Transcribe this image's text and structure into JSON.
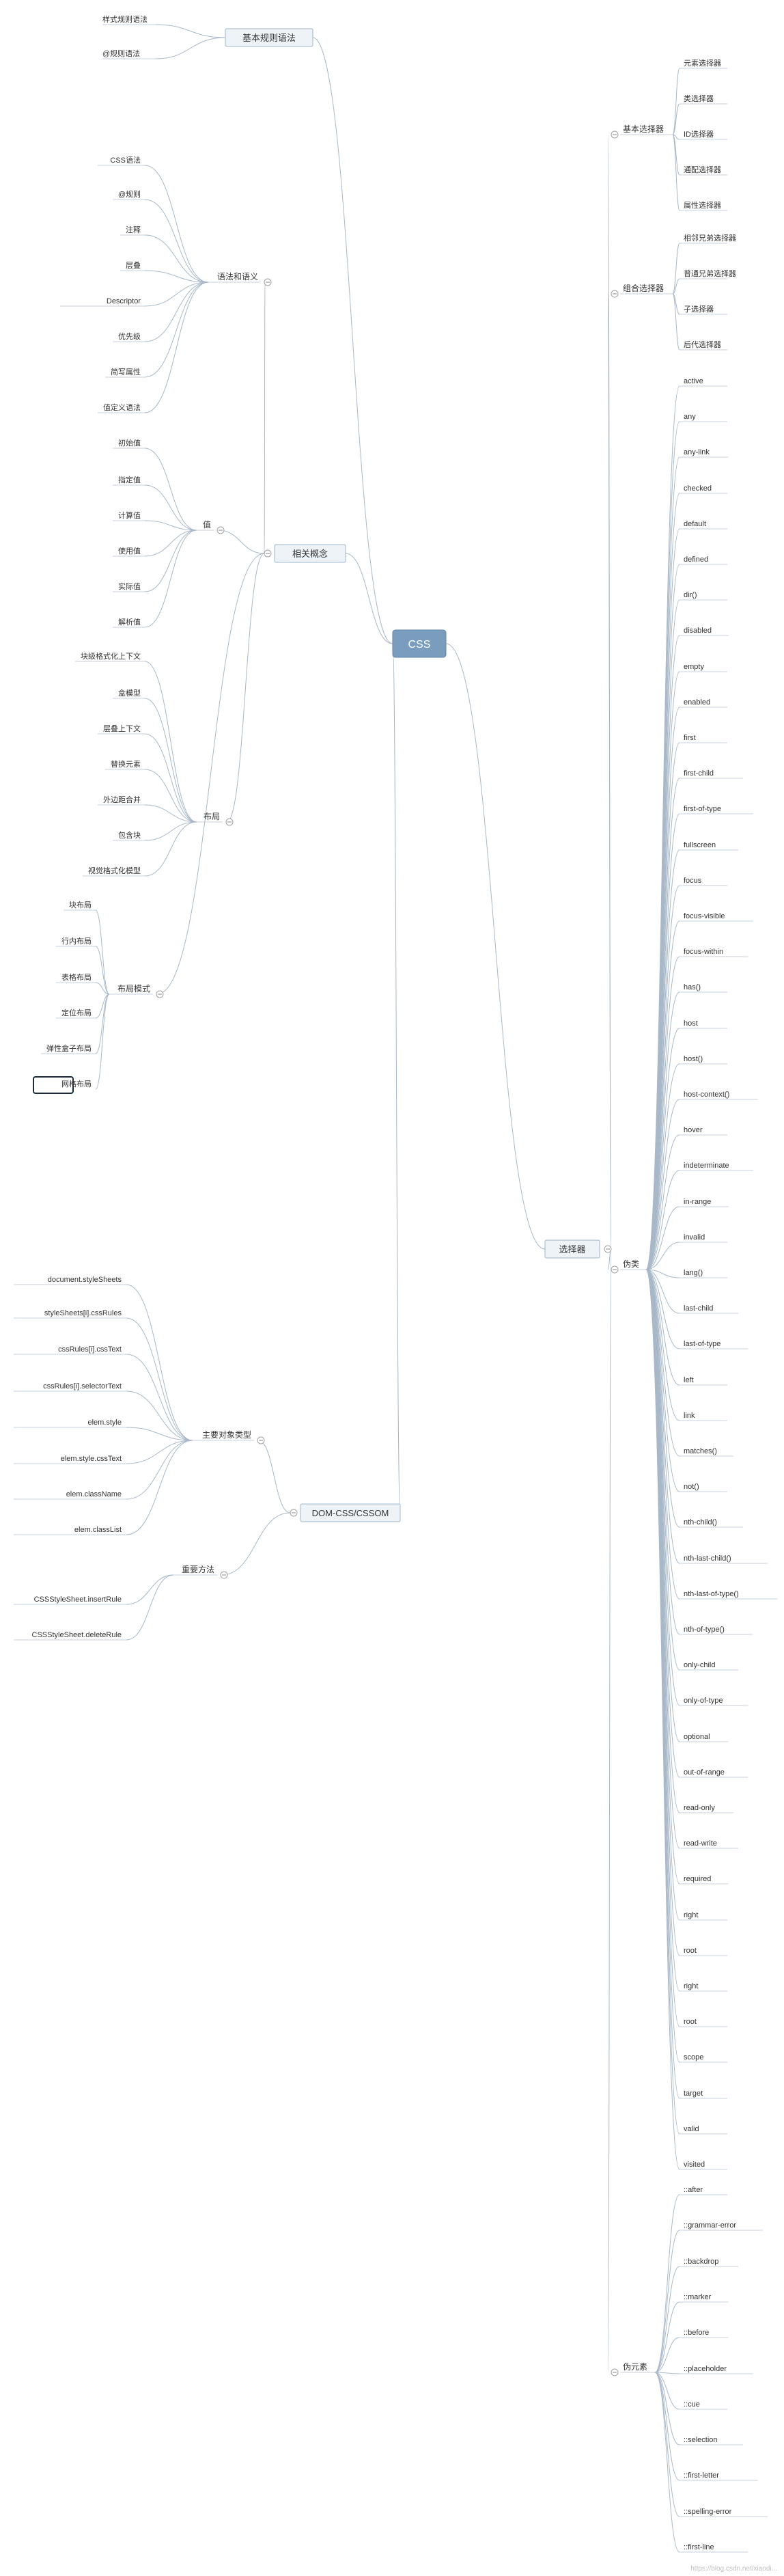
{
  "root": "CSS",
  "watermark": "https://blog.csdn.net/xiaodi...",
  "colors": {
    "root_fill": "#7a9dbd",
    "connector": "#a8b8c8",
    "box_fill": "#eef3f8",
    "box_stroke": "#9fb4c9",
    "highlight_stroke": "#1a2a3a"
  },
  "left": [
    {
      "label": "基本规则语法",
      "children": [
        {
          "label": "样式规则语法"
        },
        {
          "label": "@规则语法"
        }
      ]
    },
    {
      "label": "相关概念",
      "children": [
        {
          "label": "语法和语义",
          "children": [
            {
              "label": "CSS语法"
            },
            {
              "label": "@规则"
            },
            {
              "label": "注释"
            },
            {
              "label": "层叠"
            },
            {
              "label": "Descriptor"
            },
            {
              "label": "优先级"
            },
            {
              "label": "简写属性"
            },
            {
              "label": "值定义语法"
            }
          ]
        },
        {
          "label": "值",
          "children": [
            {
              "label": "初始值"
            },
            {
              "label": "指定值"
            },
            {
              "label": "计算值"
            },
            {
              "label": "使用值"
            },
            {
              "label": "实际值"
            },
            {
              "label": "解析值"
            }
          ]
        },
        {
          "label": "布局",
          "children": [
            {
              "label": "块级格式化上下文"
            },
            {
              "label": "盒模型"
            },
            {
              "label": "层叠上下文"
            },
            {
              "label": "替换元素"
            },
            {
              "label": "外边距合并"
            },
            {
              "label": "包含块"
            },
            {
              "label": "视觉格式化模型"
            }
          ]
        },
        {
          "label": "布局模式",
          "children": [
            {
              "label": "块布局"
            },
            {
              "label": "行内布局"
            },
            {
              "label": "表格布局"
            },
            {
              "label": "定位布局"
            },
            {
              "label": "弹性盒子布局"
            },
            {
              "label": "网格布局",
              "highlight": true
            }
          ]
        }
      ]
    },
    {
      "label": "DOM-CSS/CSSOM",
      "children": [
        {
          "label": "主要对象类型",
          "children": [
            {
              "label": "document.styleSheets"
            },
            {
              "label": "styleSheets[i].cssRules"
            },
            {
              "label": "cssRules[i].cssText"
            },
            {
              "label": "cssRules[i].selectorText"
            },
            {
              "label": "elem.style"
            },
            {
              "label": "elem.style.cssText"
            },
            {
              "label": "elem.className"
            },
            {
              "label": "elem.classList"
            }
          ]
        },
        {
          "label": "重要方法",
          "children": [
            {
              "label": "CSSStyleSheet.insertRule"
            },
            {
              "label": "CSSStyleSheet.deleteRule"
            }
          ]
        }
      ]
    }
  ],
  "right": [
    {
      "label": "选择器",
      "children": [
        {
          "label": "基本选择器",
          "children": [
            {
              "label": "元素选择器"
            },
            {
              "label": "类选择器"
            },
            {
              "label": "ID选择器"
            },
            {
              "label": "通配选择器"
            },
            {
              "label": "属性选择器"
            }
          ]
        },
        {
          "label": "组合选择器",
          "children": [
            {
              "label": "相邻兄弟选择器"
            },
            {
              "label": "普通兄弟选择器"
            },
            {
              "label": "子选择器"
            },
            {
              "label": "后代选择器"
            }
          ]
        },
        {
          "label": "伪类",
          "children": [
            {
              "label": "active"
            },
            {
              "label": "any"
            },
            {
              "label": "any-link"
            },
            {
              "label": "checked"
            },
            {
              "label": "default"
            },
            {
              "label": "defined"
            },
            {
              "label": "dir()"
            },
            {
              "label": "disabled"
            },
            {
              "label": "empty"
            },
            {
              "label": "enabled"
            },
            {
              "label": "first"
            },
            {
              "label": "first-child"
            },
            {
              "label": "first-of-type"
            },
            {
              "label": "fullscreen"
            },
            {
              "label": "focus"
            },
            {
              "label": "focus-visible"
            },
            {
              "label": "focus-within"
            },
            {
              "label": "has()"
            },
            {
              "label": "host"
            },
            {
              "label": "host()"
            },
            {
              "label": "host-context()"
            },
            {
              "label": "hover"
            },
            {
              "label": "indeterminate"
            },
            {
              "label": "in-range"
            },
            {
              "label": "invalid"
            },
            {
              "label": "lang()"
            },
            {
              "label": "last-child"
            },
            {
              "label": "last-of-type"
            },
            {
              "label": "left"
            },
            {
              "label": "link"
            },
            {
              "label": "matches()"
            },
            {
              "label": "not()"
            },
            {
              "label": "nth-child()"
            },
            {
              "label": "nth-last-child()"
            },
            {
              "label": "nth-last-of-type()"
            },
            {
              "label": "nth-of-type()"
            },
            {
              "label": "only-child"
            },
            {
              "label": "only-of-type"
            },
            {
              "label": "optional"
            },
            {
              "label": "out-of-range"
            },
            {
              "label": "read-only"
            },
            {
              "label": "read-write"
            },
            {
              "label": "required"
            },
            {
              "label": "right"
            },
            {
              "label": "root"
            },
            {
              "label": "right"
            },
            {
              "label": "root"
            },
            {
              "label": "scope"
            },
            {
              "label": "target"
            },
            {
              "label": "valid"
            },
            {
              "label": "visited"
            }
          ]
        },
        {
          "label": "伪元素",
          "children": [
            {
              "label": "::after"
            },
            {
              "label": "::grammar-error"
            },
            {
              "label": "::backdrop"
            },
            {
              "label": "::marker"
            },
            {
              "label": "::before"
            },
            {
              "label": "::placeholder"
            },
            {
              "label": "::cue"
            },
            {
              "label": "::selection"
            },
            {
              "label": "::first-letter"
            },
            {
              "label": "::spelling-error"
            },
            {
              "label": "::first-line"
            }
          ]
        }
      ]
    }
  ]
}
